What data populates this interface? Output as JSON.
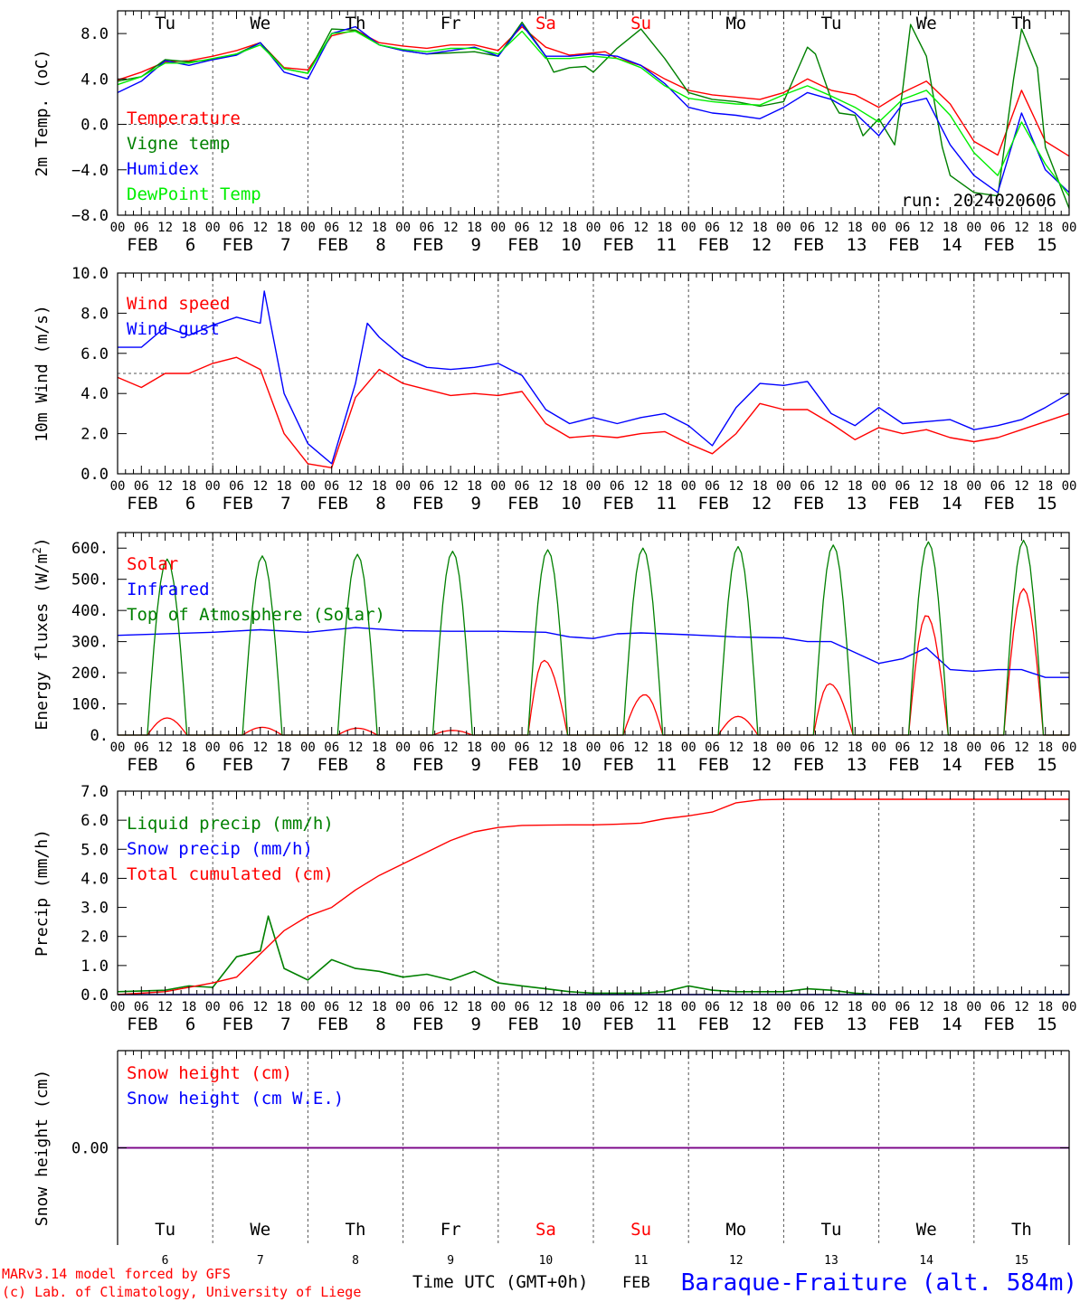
{
  "days": [
    {
      "abbr": "Tu",
      "num": "6",
      "weekend": false
    },
    {
      "abbr": "We",
      "num": "7",
      "weekend": false
    },
    {
      "abbr": "Th",
      "num": "8",
      "weekend": false
    },
    {
      "abbr": "Fr",
      "num": "9",
      "weekend": false
    },
    {
      "abbr": "Sa",
      "num": "10",
      "weekend": true
    },
    {
      "abbr": "Su",
      "num": "11",
      "weekend": true
    },
    {
      "abbr": "Mo",
      "num": "12",
      "weekend": false
    },
    {
      "abbr": "Tu",
      "num": "13",
      "weekend": false
    },
    {
      "abbr": "We",
      "num": "14",
      "weekend": false
    },
    {
      "abbr": "Th",
      "num": "15",
      "weekend": false
    }
  ],
  "month_label": "FEB",
  "hour_ticks": [
    "00",
    "06",
    "12",
    "18"
  ],
  "last_hour_tick": "00",
  "colors": {
    "red": "#ff0000",
    "green": "#008000",
    "blue": "#0000ff",
    "lightgreen": "#00ee00",
    "purple": "#800080",
    "axis": "#000000",
    "grid": "#555555",
    "weekend": "#ff0000"
  },
  "run_label": "run: 2024020606",
  "footer": {
    "credit_line1": "MARv3.14 model forced by GFS",
    "credit_line2": "(c) Lab. of Climatology, University of Liege",
    "xaxis_label": "Time UTC (GMT+0h)",
    "month": "FEB",
    "station": "Baraque-Fraiture (alt. 584m)"
  },
  "chart_data": [
    {
      "type": "line",
      "ylabel": "2m Temp. (oC)",
      "ylim": [
        -8,
        10
      ],
      "yticks": [
        8,
        4,
        0,
        -4,
        -8
      ],
      "ytick_labels": [
        "8.0",
        "4.0",
        "0.0",
        "−4.0",
        "−8.0"
      ],
      "reference_line": 0,
      "x_unit": "hours since FEB 6 00 UTC",
      "series": [
        {
          "name": "Temperature",
          "color": "#ff0000",
          "x": [
            0,
            6,
            12,
            18,
            24,
            30,
            36,
            42,
            48,
            54,
            60,
            66,
            72,
            78,
            84,
            90,
            96,
            102,
            108,
            114,
            120,
            123,
            126,
            132,
            138,
            144,
            150,
            156,
            162,
            168,
            174,
            180,
            186,
            192,
            198,
            204,
            210,
            216,
            222,
            228,
            234,
            240
          ],
          "y": [
            3.9,
            4.6,
            5.5,
            5.6,
            6.0,
            6.5,
            7.2,
            5.0,
            4.8,
            7.8,
            8.3,
            7.2,
            6.9,
            6.7,
            7.0,
            7.0,
            6.5,
            8.6,
            6.8,
            6.1,
            6.3,
            6.4,
            5.8,
            5.2,
            4.0,
            3.0,
            2.6,
            2.4,
            2.2,
            2.8,
            4.0,
            3.0,
            2.6,
            1.5,
            2.8,
            3.8,
            1.8,
            -1.5,
            -2.7,
            3.0,
            -1.5,
            -2.8
          ]
        },
        {
          "name": "Vigne temp",
          "color": "#008000",
          "x": [
            0,
            6,
            12,
            18,
            24,
            30,
            36,
            42,
            48,
            54,
            60,
            66,
            72,
            78,
            84,
            90,
            96,
            102,
            108,
            110,
            114,
            118,
            120,
            126,
            132,
            138,
            144,
            150,
            156,
            162,
            168,
            174,
            176,
            180,
            182,
            186,
            188,
            192,
            196,
            198,
            200,
            204,
            208,
            210,
            216,
            222,
            226,
            228,
            232,
            234,
            240
          ],
          "y": [
            3.8,
            4.2,
            5.7,
            5.5,
            5.7,
            6.2,
            7.2,
            4.9,
            4.5,
            8.4,
            8.3,
            7.0,
            6.5,
            6.2,
            6.3,
            6.4,
            6.0,
            9.0,
            6.0,
            4.6,
            5.0,
            5.1,
            4.6,
            6.7,
            8.4,
            5.8,
            2.8,
            2.2,
            2.0,
            1.6,
            2.0,
            6.8,
            6.2,
            2.2,
            1.0,
            0.8,
            -1.0,
            0.5,
            -1.8,
            3.0,
            8.8,
            6.0,
            -2.0,
            -4.5,
            -6.0,
            -6.3,
            4.0,
            8.4,
            5.0,
            -2.0,
            -7.4
          ]
        },
        {
          "name": "Humidex",
          "color": "#0000ff",
          "x": [
            0,
            6,
            12,
            18,
            24,
            30,
            36,
            42,
            48,
            54,
            60,
            66,
            72,
            78,
            84,
            90,
            96,
            102,
            108,
            114,
            120,
            126,
            132,
            138,
            144,
            150,
            156,
            162,
            168,
            174,
            180,
            186,
            192,
            198,
            204,
            210,
            216,
            222,
            228,
            234,
            240
          ],
          "y": [
            2.8,
            3.8,
            5.6,
            5.2,
            5.7,
            6.1,
            7.2,
            4.6,
            4.0,
            8.0,
            8.6,
            7.0,
            6.5,
            6.2,
            6.5,
            6.8,
            6.0,
            8.8,
            6.0,
            6.0,
            6.2,
            6.0,
            5.2,
            3.6,
            1.5,
            1.0,
            0.8,
            0.5,
            1.5,
            2.8,
            2.2,
            1.0,
            -1.0,
            1.8,
            2.3,
            -1.8,
            -4.5,
            -6.0,
            1.0,
            -4.0,
            -6.0
          ]
        },
        {
          "name": "DewPoint Temp",
          "color": "#00ee00",
          "x": [
            0,
            6,
            12,
            18,
            24,
            30,
            36,
            42,
            48,
            54,
            60,
            66,
            72,
            78,
            84,
            90,
            96,
            102,
            108,
            114,
            120,
            126,
            132,
            138,
            144,
            150,
            156,
            162,
            168,
            174,
            180,
            186,
            192,
            198,
            204,
            210,
            216,
            222,
            228,
            234,
            240
          ],
          "y": [
            3.5,
            4.2,
            5.4,
            5.4,
            5.8,
            6.2,
            7.0,
            4.9,
            4.5,
            8.0,
            8.2,
            7.0,
            6.6,
            6.4,
            6.7,
            6.7,
            6.2,
            8.2,
            5.8,
            5.8,
            6.0,
            5.8,
            5.0,
            3.4,
            2.3,
            2.0,
            1.8,
            1.7,
            2.6,
            3.4,
            2.5,
            1.5,
            0.2,
            2.2,
            3.0,
            0.8,
            -2.5,
            -4.5,
            0.2,
            -3.5,
            -6.3
          ]
        }
      ]
    },
    {
      "type": "line",
      "ylabel": "10m Wind (m/s)",
      "ylim": [
        0,
        10
      ],
      "yticks": [
        10,
        8,
        6,
        4,
        2,
        0
      ],
      "ytick_labels": [
        "10.0",
        "8.0",
        "6.0",
        "4.0",
        "2.0",
        "0.0"
      ],
      "reference_line": 5,
      "x_unit": "hours since FEB 6 00 UTC",
      "series": [
        {
          "name": "Wind speed",
          "color": "#ff0000",
          "x": [
            0,
            6,
            12,
            18,
            24,
            30,
            36,
            42,
            48,
            54,
            60,
            66,
            72,
            78,
            84,
            90,
            96,
            102,
            108,
            114,
            120,
            126,
            132,
            138,
            144,
            150,
            156,
            162,
            168,
            174,
            180,
            186,
            192,
            198,
            204,
            210,
            216,
            222,
            228,
            234,
            240
          ],
          "y": [
            4.8,
            4.3,
            5.0,
            5.0,
            5.5,
            5.8,
            5.2,
            2.0,
            0.5,
            0.3,
            3.8,
            5.2,
            4.5,
            4.2,
            3.9,
            4.0,
            3.9,
            4.1,
            2.5,
            1.8,
            1.9,
            1.8,
            2.0,
            2.1,
            1.5,
            1.0,
            2.0,
            3.5,
            3.2,
            3.2,
            2.5,
            1.7,
            2.3,
            2.0,
            2.2,
            1.8,
            1.6,
            1.8,
            2.2,
            2.6,
            3.0
          ]
        },
        {
          "name": "Wind gust",
          "color": "#0000ff",
          "x": [
            0,
            6,
            12,
            18,
            24,
            30,
            36,
            37,
            42,
            48,
            54,
            60,
            63,
            66,
            72,
            78,
            84,
            90,
            96,
            102,
            108,
            114,
            120,
            126,
            132,
            138,
            144,
            150,
            156,
            162,
            168,
            174,
            180,
            186,
            192,
            198,
            204,
            210,
            216,
            222,
            228,
            234,
            240
          ],
          "y": [
            6.3,
            6.3,
            7.3,
            6.9,
            7.4,
            7.8,
            7.5,
            9.1,
            4.0,
            1.5,
            0.5,
            4.5,
            7.5,
            6.8,
            5.8,
            5.3,
            5.2,
            5.3,
            5.5,
            4.9,
            3.2,
            2.5,
            2.8,
            2.5,
            2.8,
            3.0,
            2.4,
            1.4,
            3.3,
            4.5,
            4.4,
            4.6,
            3.0,
            2.4,
            3.3,
            2.5,
            2.6,
            2.7,
            2.2,
            2.4,
            2.7,
            3.3,
            4.0
          ]
        }
      ]
    },
    {
      "type": "line",
      "ylabel": "Energy fluxes (W/m2)",
      "ylim": [
        0,
        650
      ],
      "yticks": [
        600,
        500,
        400,
        300,
        200,
        100,
        0
      ],
      "ytick_labels": [
        "600.",
        "500.",
        "400.",
        "300.",
        "200.",
        "100.",
        "0."
      ],
      "x_unit": "hours since FEB 6 00 UTC",
      "series": [
        {
          "name": "Solar",
          "color": "#ff0000",
          "daily_peak": [
            55,
            25,
            22,
            15,
            240,
            130,
            60,
            165,
            385,
            470
          ],
          "daily_peak_hour": [
            12.5,
            12.5,
            12.5,
            12.5,
            11.5,
            13,
            12.5,
            11.5,
            12,
            12.5
          ],
          "daylight_hours": [
            7.5,
            17.5
          ]
        },
        {
          "name": "Infrared",
          "color": "#0000ff",
          "x": [
            0,
            24,
            36,
            48,
            60,
            72,
            84,
            96,
            108,
            114,
            120,
            126,
            132,
            144,
            156,
            168,
            174,
            180,
            192,
            198,
            204,
            210,
            216,
            222,
            228,
            234,
            240
          ],
          "y": [
            320,
            330,
            338,
            330,
            345,
            335,
            333,
            333,
            330,
            315,
            310,
            325,
            328,
            322,
            315,
            312,
            300,
            300,
            230,
            245,
            280,
            210,
            205,
            210,
            210,
            185,
            185
          ]
        },
        {
          "name": "Top of Atmosphere (Solar)",
          "color": "#008000",
          "daily_peak": [
            565,
            575,
            580,
            590,
            595,
            600,
            605,
            610,
            620,
            625
          ],
          "daylight_hours": [
            7.5,
            17.5
          ]
        }
      ]
    },
    {
      "type": "line",
      "ylabel": "Precip (mm/h)",
      "ylim": [
        0,
        7
      ],
      "yticks": [
        7,
        6,
        5,
        4,
        3,
        2,
        1,
        0
      ],
      "ytick_labels": [
        "7.0",
        "6.0",
        "5.0",
        "4.0",
        "3.0",
        "2.0",
        "1.0",
        "0.0"
      ],
      "x_unit": "hours since FEB 6 00 UTC",
      "series": [
        {
          "name": "Liquid precip (mm/h)",
          "color": "#008000",
          "x": [
            0,
            12,
            18,
            24,
            30,
            36,
            38,
            42,
            48,
            54,
            60,
            66,
            72,
            78,
            84,
            90,
            96,
            102,
            108,
            114,
            120,
            126,
            132,
            138,
            144,
            150,
            156,
            162,
            168,
            174,
            180,
            186,
            192,
            198,
            204,
            210,
            216,
            222,
            228,
            234,
            240
          ],
          "y": [
            0.1,
            0.15,
            0.3,
            0.25,
            1.3,
            1.5,
            2.7,
            0.9,
            0.5,
            1.2,
            0.9,
            0.8,
            0.6,
            0.7,
            0.5,
            0.8,
            0.4,
            0.3,
            0.2,
            0.1,
            0.05,
            0.05,
            0.05,
            0.1,
            0.3,
            0.15,
            0.1,
            0.1,
            0.1,
            0.2,
            0.15,
            0.05,
            0.0,
            0.0,
            0.0,
            0.0,
            0.0,
            0.0,
            0.0,
            0.0,
            0.0
          ]
        },
        {
          "name": "Snow precip (mm/h)",
          "color": "#0000ff",
          "x": [
            0,
            240
          ],
          "y": [
            0.0,
            0.0
          ]
        },
        {
          "name": "Total cumulated (cm)",
          "color": "#ff0000",
          "x": [
            0,
            12,
            24,
            30,
            36,
            42,
            48,
            54,
            60,
            66,
            72,
            78,
            84,
            90,
            96,
            102,
            108,
            114,
            120,
            126,
            132,
            138,
            144,
            150,
            156,
            162,
            168,
            174,
            180,
            186,
            192,
            198,
            204,
            210,
            216,
            222,
            228,
            234,
            240
          ],
          "y": [
            0.0,
            0.1,
            0.4,
            0.6,
            1.4,
            2.2,
            2.7,
            3.0,
            3.6,
            4.1,
            4.5,
            4.9,
            5.3,
            5.6,
            5.75,
            5.82,
            5.83,
            5.84,
            5.84,
            5.86,
            5.9,
            6.05,
            6.15,
            6.28,
            6.6,
            6.7,
            6.72,
            6.72,
            6.72,
            6.72,
            6.72,
            6.72,
            6.72,
            6.72,
            6.72,
            6.72,
            6.72,
            6.72,
            6.72
          ]
        }
      ]
    },
    {
      "type": "line",
      "ylabel": "Snow height (cm)",
      "ylim": [
        -1,
        1
      ],
      "yticks": [
        0
      ],
      "ytick_labels": [
        "0.00"
      ],
      "x_unit": "hours since FEB 6 00 UTC",
      "series": [
        {
          "name": "Snow height (cm)",
          "color": "#ff0000",
          "x": [
            0,
            240
          ],
          "y": [
            0,
            0
          ]
        },
        {
          "name": "Snow height (cm W.E.)",
          "color": "#0000ff",
          "x": [
            0,
            240
          ],
          "y": [
            0,
            0
          ]
        }
      ]
    }
  ]
}
